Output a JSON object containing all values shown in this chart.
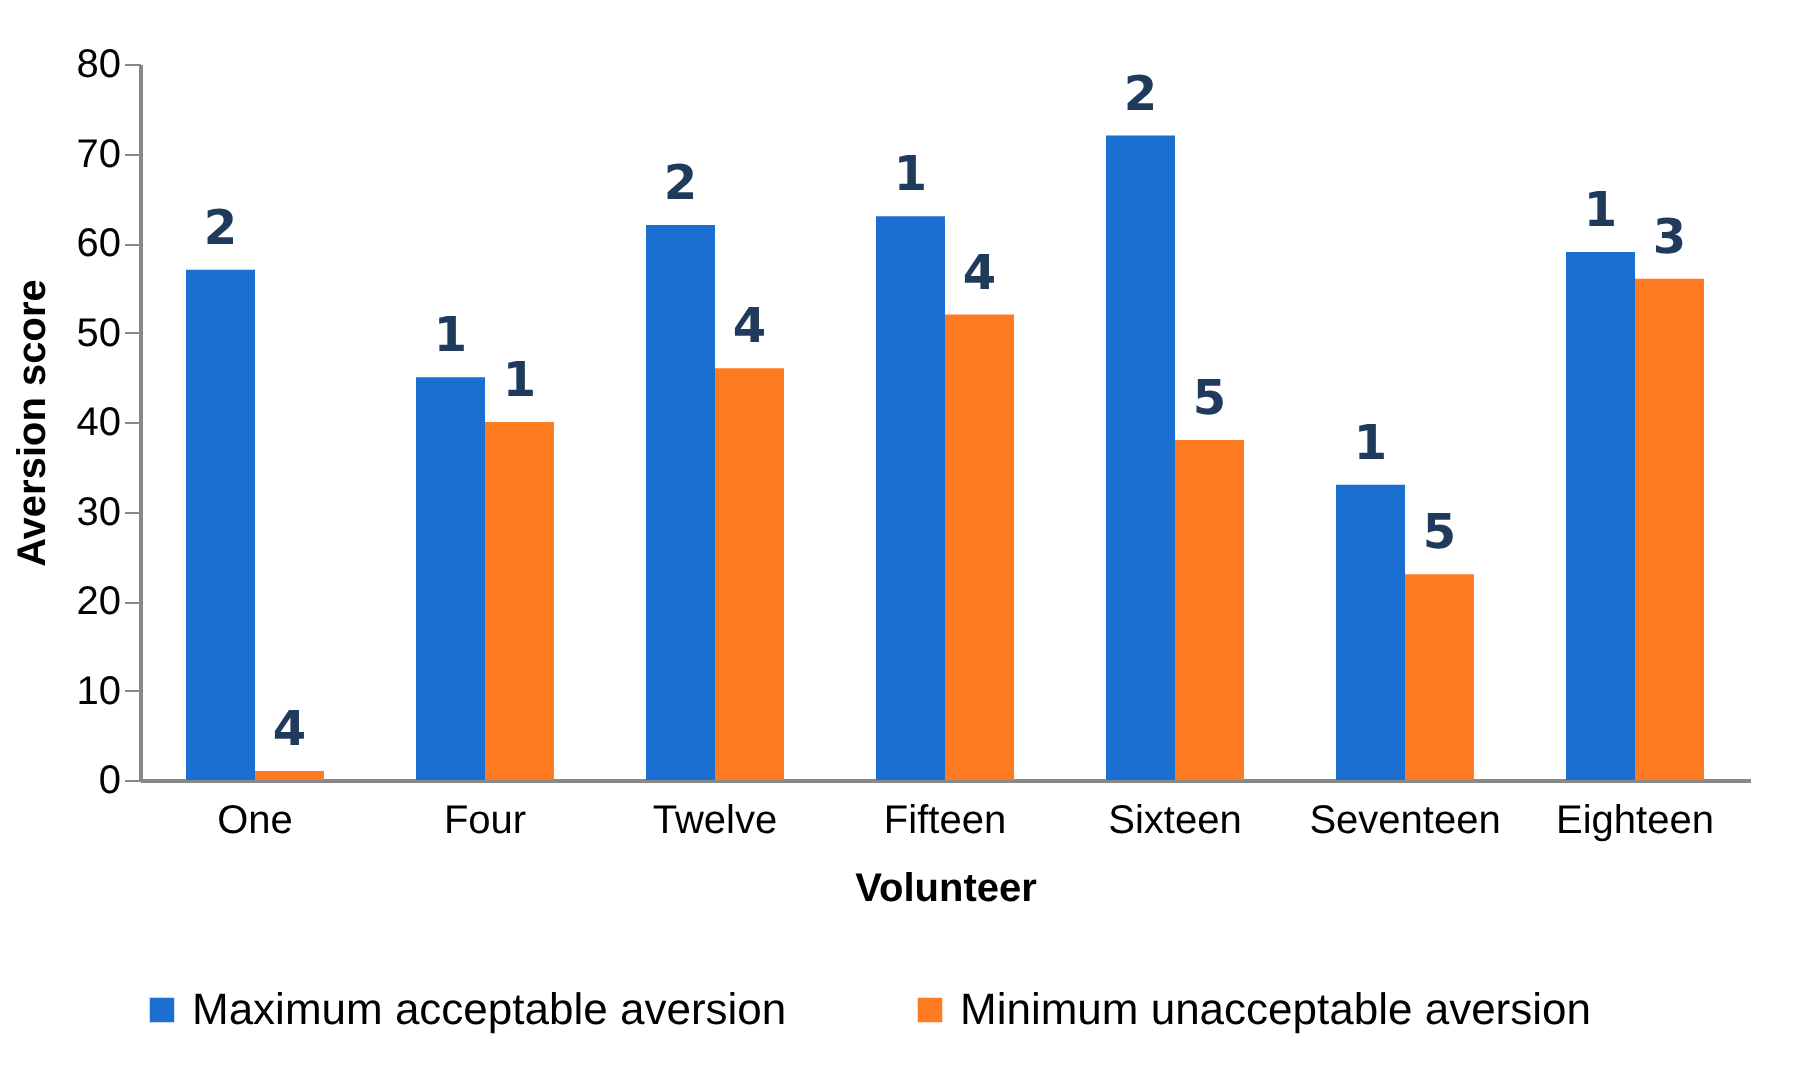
{
  "chart_data": {
    "type": "bar",
    "xlabel": "Volunteer",
    "ylabel": "Aversion score",
    "categories": [
      "One",
      "Four",
      "Twelve",
      "Fifteen",
      "Sixteen",
      "Seventeen",
      "Eighteen"
    ],
    "series": [
      {
        "name": "Maximum acceptable aversion",
        "color": "#1a6fd0",
        "values": [
          57,
          45,
          62,
          63,
          72,
          33,
          59
        ]
      },
      {
        "name": "Minimum unacceptable aversion",
        "color": "#ff7b22",
        "values": [
          1,
          40,
          46,
          52,
          38,
          23,
          56
        ]
      }
    ],
    "annotations": [
      {
        "text": "2",
        "x": "One",
        "y": 57
      },
      {
        "text": "4",
        "x": "One",
        "y": 1
      },
      {
        "text": "1",
        "x": "Four",
        "y": 45
      },
      {
        "text": "1",
        "x": "Four",
        "y": 40
      },
      {
        "text": "2",
        "x": "Twelve",
        "y": 62
      },
      {
        "text": "4",
        "x": "Twelve",
        "y": 46
      },
      {
        "text": "1",
        "x": "Fifteen",
        "y": 63
      },
      {
        "text": "4",
        "x": "Fifteen",
        "y": 52
      },
      {
        "text": "2",
        "x": "Sixteen",
        "y": 72
      },
      {
        "text": "5",
        "x": "Sixteen",
        "y": 38
      },
      {
        "text": "1",
        "x": "Seventeen",
        "y": 33
      },
      {
        "text": "5",
        "x": "Seventeen",
        "y": 23
      },
      {
        "text": "1",
        "x": "Eighteen",
        "y": 59
      },
      {
        "text": "3",
        "x": "Eighteen",
        "y": 56
      }
    ],
    "ylim": [
      0,
      80
    ],
    "yticks": [
      0,
      10,
      20,
      30,
      40,
      50,
      60,
      70,
      80
    ],
    "grid": false,
    "legend": "bottom"
  }
}
